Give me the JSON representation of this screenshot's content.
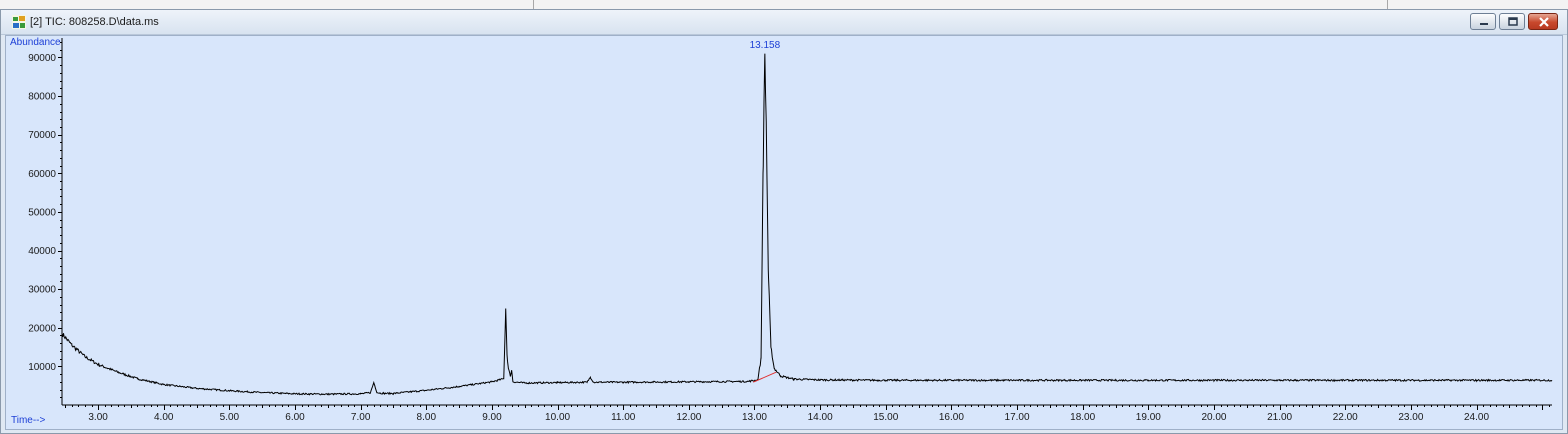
{
  "window": {
    "title": "[2] TIC: 808258.D\\data.ms",
    "icon": "chromatogram-app-icon",
    "buttons": [
      "minimize",
      "restore",
      "close"
    ]
  },
  "chart_data": {
    "type": "line",
    "ylabel": "Abundance",
    "xlabel": "Time-->",
    "ylim": [
      0,
      94000
    ],
    "xlim": [
      2.45,
      25.15
    ],
    "y_ticks": [
      10000,
      20000,
      30000,
      40000,
      50000,
      60000,
      70000,
      80000,
      90000
    ],
    "y_tick_labels": [
      "10000",
      "20000",
      "30000",
      "40000",
      "50000",
      "60000",
      "70000",
      "80000",
      "90000"
    ],
    "x_ticks": [
      3,
      4,
      5,
      6,
      7,
      8,
      9,
      10,
      11,
      12,
      13,
      14,
      15,
      16,
      17,
      18,
      19,
      20,
      21,
      22,
      23,
      24
    ],
    "x_tick_labels": [
      "3.00",
      "4.00",
      "5.00",
      "6.00",
      "7.00",
      "8.00",
      "9.00",
      "10.00",
      "11.00",
      "12.00",
      "13.00",
      "14.00",
      "15.00",
      "16.00",
      "17.00",
      "18.00",
      "19.00",
      "20.00",
      "21.00",
      "22.00",
      "23.00",
      "24.00"
    ],
    "grid": false,
    "line_color": "#000000",
    "baseline_color": "#e03030",
    "peak_label_color": "#1d3fd6",
    "background": "#d8e6fb",
    "peak_labels": [
      {
        "x": 13.158,
        "text": "13.158"
      }
    ],
    "series": [
      {
        "x": [
          2.45,
          2.6,
          2.8,
          3.0,
          3.3,
          3.6,
          4.0,
          4.5,
          5.0,
          5.5,
          6.0,
          6.5,
          7.0,
          7.15,
          7.2,
          7.25,
          7.35,
          7.5,
          8.0,
          8.5,
          9.0,
          9.18,
          9.21,
          9.23,
          9.25,
          9.28,
          9.3,
          9.32,
          9.5,
          10.0,
          10.45,
          10.5,
          10.55,
          11.0,
          12.0,
          12.9,
          13.05,
          13.1,
          13.13,
          13.158,
          13.18,
          13.21,
          13.25,
          13.3,
          13.4,
          13.6,
          14.0,
          15.0,
          16.0,
          17.0,
          18.0,
          19.0,
          20.0,
          21.0,
          22.0,
          23.0,
          24.0,
          25.15
        ],
        "y": [
          18500,
          15500,
          12500,
          10500,
          8500,
          6800,
          5300,
          4300,
          3700,
          3200,
          2900,
          2800,
          2900,
          3200,
          5800,
          3200,
          3000,
          3000,
          3800,
          4800,
          6000,
          6800,
          25000,
          13000,
          9500,
          7500,
          9000,
          6000,
          5700,
          5800,
          5900,
          7200,
          5900,
          5900,
          6000,
          6100,
          6500,
          12000,
          60000,
          91000,
          72000,
          35000,
          15000,
          9500,
          7500,
          6700,
          6500,
          6400,
          6400,
          6400,
          6400,
          6400,
          6400,
          6400,
          6400,
          6400,
          6400,
          6400
        ]
      }
    ]
  }
}
